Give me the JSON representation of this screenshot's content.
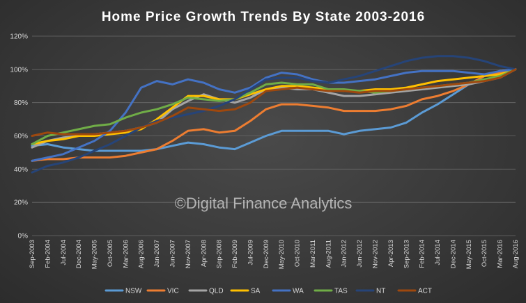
{
  "chart_data": {
    "type": "line",
    "title": "Home Price Growth Trends  By State  2003-2016",
    "watermark": "©Digital Finance Analytics",
    "xlabel": "",
    "ylabel": "",
    "ylim": [
      0,
      120
    ],
    "yticks": [
      0,
      20,
      40,
      60,
      80,
      100,
      120
    ],
    "ytick_labels": [
      "0%",
      "20%",
      "40%",
      "60%",
      "80%",
      "100%",
      "120%"
    ],
    "grid": true,
    "legend_position": "bottom",
    "x": [
      "Sep-2003",
      "Feb-2004",
      "Jul-2004",
      "Dec-2004",
      "May-2005",
      "Oct-2005",
      "Mar-2006",
      "Aug-2006",
      "Jan-2007",
      "Jun-2007",
      "Nov-2007",
      "Apr-2008",
      "Sep-2008",
      "Feb-2009",
      "Jul-2009",
      "Dec-2009",
      "May-2010",
      "Oct-2010",
      "Mar-2011",
      "Aug-2011",
      "Jan-2012",
      "Jun-2012",
      "Nov-2012",
      "Apr-2013",
      "Sep-2013",
      "Feb-2014",
      "Jul-2014",
      "Dec-2014",
      "May-2015",
      "Oct-2015",
      "Mar-2016",
      "Aug-2016"
    ],
    "series": [
      {
        "name": "NSW",
        "color": "#5b9bd5",
        "values": [
          54,
          55,
          53,
          52,
          51,
          51,
          51,
          51,
          52,
          54,
          56,
          55,
          53,
          52,
          56,
          60,
          63,
          63,
          63,
          63,
          61,
          63,
          64,
          65,
          68,
          74,
          79,
          85,
          91,
          96,
          99,
          100
        ]
      },
      {
        "name": "VIC",
        "color": "#ed7d31",
        "values": [
          45,
          46,
          46,
          47,
          47,
          47,
          48,
          50,
          52,
          57,
          63,
          64,
          62,
          63,
          69,
          76,
          79,
          79,
          78,
          77,
          75,
          75,
          75,
          76,
          78,
          82,
          84,
          87,
          91,
          96,
          98,
          100
        ]
      },
      {
        "name": "QLD",
        "color": "#a5a5a5",
        "values": [
          53,
          57,
          59,
          60,
          61,
          62,
          63,
          65,
          68,
          76,
          81,
          85,
          82,
          80,
          83,
          88,
          89,
          88,
          88,
          86,
          84,
          84,
          85,
          86,
          87,
          88,
          89,
          90,
          91,
          93,
          95,
          100
        ]
      },
      {
        "name": "SA",
        "color": "#ffc000",
        "values": [
          55,
          57,
          58,
          60,
          60,
          61,
          62,
          64,
          70,
          77,
          84,
          84,
          82,
          82,
          85,
          88,
          90,
          90,
          89,
          88,
          87,
          87,
          88,
          88,
          89,
          91,
          93,
          94,
          95,
          96,
          97,
          100
        ]
      },
      {
        "name": "WA",
        "color": "#4472c4",
        "values": [
          45,
          47,
          49,
          53,
          57,
          63,
          74,
          89,
          93,
          91,
          94,
          92,
          88,
          86,
          89,
          95,
          98,
          97,
          94,
          92,
          92,
          93,
          94,
          96,
          98,
          99,
          99,
          99,
          98,
          97,
          99,
          100
        ]
      },
      {
        "name": "TAS",
        "color": "#70ad47",
        "values": [
          55,
          60,
          62,
          64,
          66,
          67,
          71,
          74,
          76,
          79,
          83,
          82,
          81,
          82,
          86,
          91,
          92,
          91,
          91,
          88,
          88,
          87,
          86,
          87,
          88,
          89,
          90,
          91,
          92,
          94,
          96,
          100
        ]
      },
      {
        "name": "NT",
        "color": "#264478",
        "values": [
          38,
          42,
          44,
          47,
          51,
          55,
          60,
          65,
          69,
          71,
          73,
          75,
          78,
          82,
          88,
          94,
          95,
          95,
          93,
          92,
          94,
          96,
          99,
          102,
          105,
          107,
          108,
          108,
          107,
          105,
          102,
          100
        ]
      },
      {
        "name": "ACT",
        "color": "#9e480e",
        "values": [
          60,
          62,
          61,
          61,
          61,
          62,
          63,
          65,
          68,
          72,
          77,
          76,
          75,
          76,
          80,
          87,
          88,
          89,
          88,
          87,
          87,
          86,
          87,
          87,
          88,
          89,
          90,
          91,
          92,
          93,
          95,
          100
        ]
      }
    ]
  }
}
